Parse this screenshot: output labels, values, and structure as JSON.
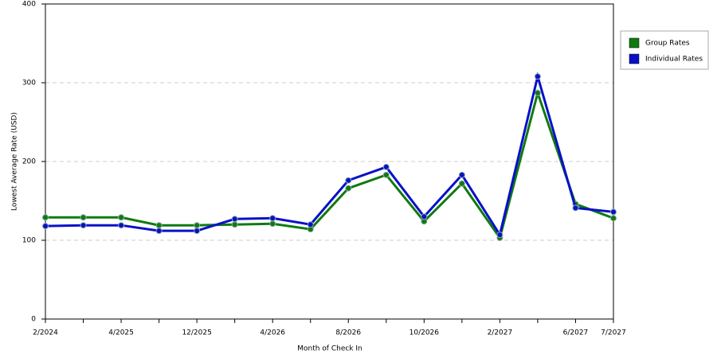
{
  "chart_data": {
    "type": "line",
    "x_label": "Month of Check In",
    "y_label": "Lowest Average Rate (USD)",
    "categories": [
      "2/2024",
      null,
      "4/2025",
      null,
      "12/2025",
      null,
      "4/2026",
      null,
      "8/2026",
      null,
      "10/2026",
      null,
      "2/2027",
      null,
      "6/2027",
      "7/2027"
    ],
    "series": [
      {
        "name": "Group Rates",
        "color": "#107a10",
        "values": [
          129,
          129,
          129,
          119,
          119,
          120,
          121,
          114,
          166,
          183,
          124,
          172,
          103,
          287,
          146,
          128
        ]
      },
      {
        "name": "Individual Rates",
        "color": "#0a10c8",
        "values": [
          118,
          119,
          119,
          112,
          112,
          127,
          128,
          120,
          176,
          193,
          130,
          183,
          107,
          308,
          141,
          136
        ]
      }
    ],
    "ylim": [
      0,
      400
    ],
    "yticks": [
      0,
      100,
      200,
      300,
      400
    ],
    "grid": true,
    "legend": "right"
  }
}
